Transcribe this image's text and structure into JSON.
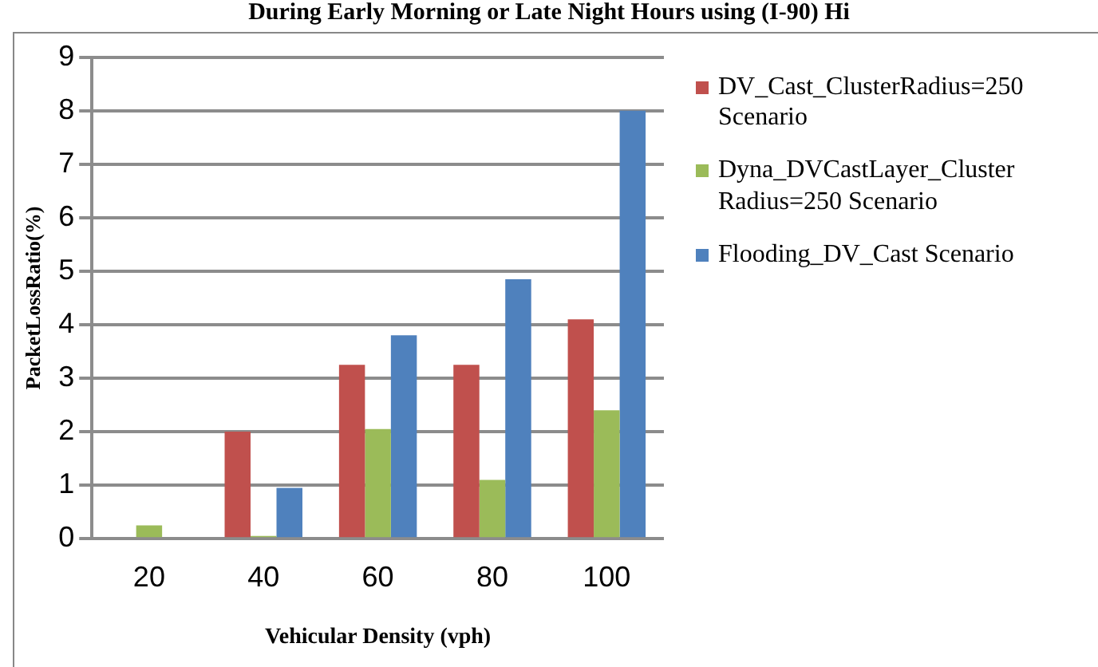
{
  "chart_data": {
    "type": "bar",
    "title": "During Early Morning or Late Night Hours using (I-90) Hi",
    "xlabel": "Vehicular Density (vph)",
    "ylabel": "PacketLossRatio(%)",
    "categories": [
      "20",
      "40",
      "60",
      "80",
      "100"
    ],
    "series": [
      {
        "name": "DV_Cast_ClusterRadius=250 Scenario",
        "color": "#c0504d",
        "values": [
          0,
          2.0,
          3.25,
          3.25,
          4.1
        ]
      },
      {
        "name": "Dyna_DVCastLayer_ClusterRadius=250 Scenario",
        "color": "#9bbb59",
        "values": [
          0.25,
          0.05,
          2.05,
          1.1,
          2.4
        ]
      },
      {
        "name": "Flooding_DV_Cast Scenario",
        "color": "#4f81bd",
        "values": [
          0,
          0.95,
          3.8,
          4.85,
          8.0
        ]
      }
    ],
    "ylim": [
      0,
      9
    ],
    "yticks": [
      0,
      1,
      2,
      3,
      4,
      5,
      6,
      7,
      8,
      9
    ],
    "grid": "y",
    "legend": "right"
  }
}
